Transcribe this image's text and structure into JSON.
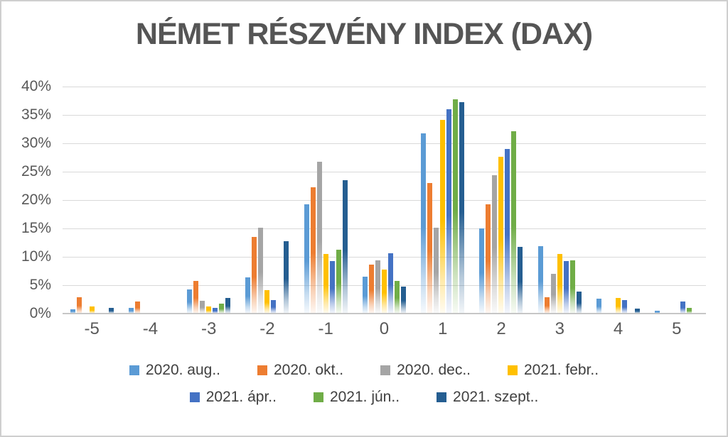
{
  "chart_data": {
    "type": "bar",
    "title": "NÉMET RÉSZVÉNY INDEX (DAX)",
    "categories": [
      "-5",
      "-4",
      "-3",
      "-2",
      "-1",
      "0",
      "1",
      "2",
      "3",
      "4",
      "5"
    ],
    "series": [
      {
        "name": "2020. aug..",
        "color": "#5B9BD5",
        "values": [
          0.7,
          1.0,
          4.3,
          6.4,
          19.3,
          6.5,
          31.7,
          15.0,
          11.9,
          2.6,
          0.5
        ]
      },
      {
        "name": "2020. okt..",
        "color": "#ED7D31",
        "values": [
          2.9,
          2.1,
          5.8,
          13.5,
          22.2,
          8.6,
          23.0,
          19.2,
          2.9,
          0,
          0
        ]
      },
      {
        "name": "2020. dec..",
        "color": "#A5A5A5",
        "values": [
          0,
          0,
          2.2,
          15.1,
          26.7,
          9.4,
          15.1,
          24.4,
          7.0,
          0,
          0
        ]
      },
      {
        "name": "2021. febr..",
        "color": "#FFC000",
        "values": [
          1.3,
          0,
          1.3,
          4.1,
          10.5,
          7.8,
          34.1,
          27.6,
          10.5,
          2.7,
          0
        ]
      },
      {
        "name": "2021. ápr..",
        "color": "#4472C4",
        "values": [
          0,
          0,
          1.0,
          2.4,
          9.3,
          10.6,
          36.0,
          29.0,
          9.3,
          2.4,
          2.1
        ]
      },
      {
        "name": "2021. jún..",
        "color": "#70AD47",
        "values": [
          0,
          0,
          1.7,
          0,
          11.3,
          5.7,
          37.7,
          32.1,
          9.4,
          0,
          1.0
        ]
      },
      {
        "name": "2021. szept..",
        "color": "#255E91",
        "values": [
          1.0,
          0,
          2.8,
          12.8,
          23.5,
          4.8,
          37.3,
          11.8,
          3.9,
          0.9,
          0
        ]
      }
    ],
    "y_ticks": [
      "40%",
      "35%",
      "30%",
      "25%",
      "20%",
      "15%",
      "10%",
      "5%",
      "0%"
    ],
    "ylim": [
      0,
      40
    ],
    "y_step": 5,
    "grid": true,
    "legend_position": "bottom",
    "legend_rows": [
      [
        0,
        1,
        2,
        3
      ],
      [
        4,
        5,
        6
      ]
    ]
  }
}
